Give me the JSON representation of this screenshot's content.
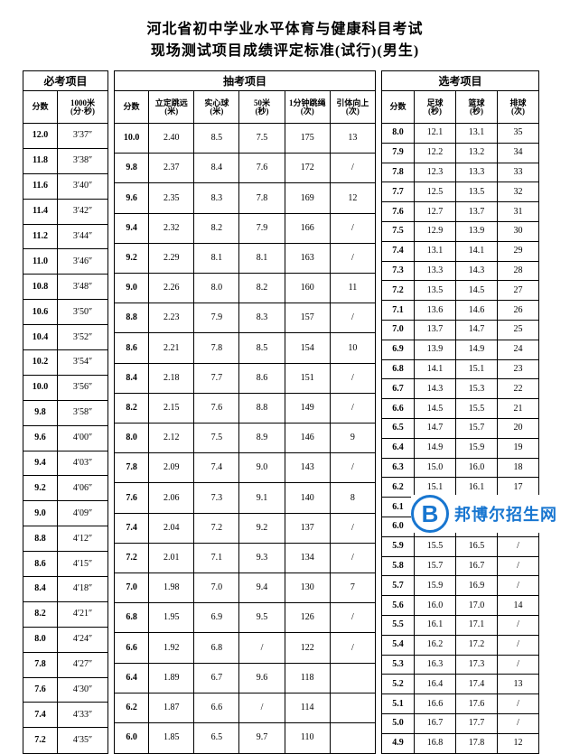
{
  "title1": "河北省初中学业水平体育与健康科目考试",
  "title2": "现场测试项目成绩评定标准(试行)(男生)",
  "watermark": {
    "letter": "B",
    "text": "邦博尔招生网"
  },
  "sections": [
    {
      "name": "必考项目",
      "cols": [
        "分数",
        "1000米\n(分·秒)"
      ],
      "rows": [
        [
          "12.0",
          "3′37″"
        ],
        [
          "11.8",
          "3′38″"
        ],
        [
          "11.6",
          "3′40″"
        ],
        [
          "11.4",
          "3′42″"
        ],
        [
          "11.2",
          "3′44″"
        ],
        [
          "11.0",
          "3′46″"
        ],
        [
          "10.8",
          "3′48″"
        ],
        [
          "10.6",
          "3′50″"
        ],
        [
          "10.4",
          "3′52″"
        ],
        [
          "10.2",
          "3′54″"
        ],
        [
          "10.0",
          "3′56″"
        ],
        [
          "9.8",
          "3′58″"
        ],
        [
          "9.6",
          "4′00″"
        ],
        [
          "9.4",
          "4′03″"
        ],
        [
          "9.2",
          "4′06″"
        ],
        [
          "9.0",
          "4′09″"
        ],
        [
          "8.8",
          "4′12″"
        ],
        [
          "8.6",
          "4′15″"
        ],
        [
          "8.4",
          "4′18″"
        ],
        [
          "8.2",
          "4′21″"
        ],
        [
          "8.0",
          "4′24″"
        ],
        [
          "7.8",
          "4′27″"
        ],
        [
          "7.6",
          "4′30″"
        ],
        [
          "7.4",
          "4′33″"
        ],
        [
          "7.2",
          "4′35″"
        ]
      ]
    },
    {
      "name": "抽考项目",
      "cols": [
        "分数",
        "立定跳远\n(米)",
        "实心球\n(米)",
        "50米\n(秒)",
        "1分钟跳绳\n(次)",
        "引体向上\n(次)"
      ],
      "rows": [
        [
          "10.0",
          "2.40",
          "8.5",
          "7.5",
          "175",
          "13"
        ],
        [
          "9.8",
          "2.37",
          "8.4",
          "7.6",
          "172",
          "/"
        ],
        [
          "9.6",
          "2.35",
          "8.3",
          "7.8",
          "169",
          "12"
        ],
        [
          "9.4",
          "2.32",
          "8.2",
          "7.9",
          "166",
          "/"
        ],
        [
          "9.2",
          "2.29",
          "8.1",
          "8.1",
          "163",
          "/"
        ],
        [
          "9.0",
          "2.26",
          "8.0",
          "8.2",
          "160",
          "11"
        ],
        [
          "8.8",
          "2.23",
          "7.9",
          "8.3",
          "157",
          "/"
        ],
        [
          "8.6",
          "2.21",
          "7.8",
          "8.5",
          "154",
          "10"
        ],
        [
          "8.4",
          "2.18",
          "7.7",
          "8.6",
          "151",
          "/"
        ],
        [
          "8.2",
          "2.15",
          "7.6",
          "8.8",
          "149",
          "/"
        ],
        [
          "8.0",
          "2.12",
          "7.5",
          "8.9",
          "146",
          "9"
        ],
        [
          "7.8",
          "2.09",
          "7.4",
          "9.0",
          "143",
          "/"
        ],
        [
          "7.6",
          "2.06",
          "7.3",
          "9.1",
          "140",
          "8"
        ],
        [
          "7.4",
          "2.04",
          "7.2",
          "9.2",
          "137",
          "/"
        ],
        [
          "7.2",
          "2.01",
          "7.1",
          "9.3",
          "134",
          "/"
        ],
        [
          "7.0",
          "1.98",
          "7.0",
          "9.4",
          "130",
          "7"
        ],
        [
          "6.8",
          "1.95",
          "6.9",
          "9.5",
          "126",
          "/"
        ],
        [
          "6.6",
          "1.92",
          "6.8",
          "/",
          "122",
          "/"
        ],
        [
          "6.4",
          "1.89",
          "6.7",
          "9.6",
          "118",
          ""
        ],
        [
          "6.2",
          "1.87",
          "6.6",
          "/",
          "114",
          ""
        ],
        [
          "6.0",
          "1.85",
          "6.5",
          "9.7",
          "110",
          ""
        ]
      ]
    },
    {
      "name": "选考项目",
      "cols": [
        "分数",
        "足球\n(秒)",
        "篮球\n(秒)",
        "排球\n(次)"
      ],
      "rows": [
        [
          "8.0",
          "12.1",
          "13.1",
          "35"
        ],
        [
          "7.9",
          "12.2",
          "13.2",
          "34"
        ],
        [
          "7.8",
          "12.3",
          "13.3",
          "33"
        ],
        [
          "7.7",
          "12.5",
          "13.5",
          "32"
        ],
        [
          "7.6",
          "12.7",
          "13.7",
          "31"
        ],
        [
          "7.5",
          "12.9",
          "13.9",
          "30"
        ],
        [
          "7.4",
          "13.1",
          "14.1",
          "29"
        ],
        [
          "7.3",
          "13.3",
          "14.3",
          "28"
        ],
        [
          "7.2",
          "13.5",
          "14.5",
          "27"
        ],
        [
          "7.1",
          "13.6",
          "14.6",
          "26"
        ],
        [
          "7.0",
          "13.7",
          "14.7",
          "25"
        ],
        [
          "6.9",
          "13.9",
          "14.9",
          "24"
        ],
        [
          "6.8",
          "14.1",
          "15.1",
          "23"
        ],
        [
          "6.7",
          "14.3",
          "15.3",
          "22"
        ],
        [
          "6.6",
          "14.5",
          "15.5",
          "21"
        ],
        [
          "6.5",
          "14.7",
          "15.7",
          "20"
        ],
        [
          "6.4",
          "14.9",
          "15.9",
          "19"
        ],
        [
          "6.3",
          "15.0",
          "16.0",
          "18"
        ],
        [
          "6.2",
          "15.1",
          "16.1",
          "17"
        ],
        [
          "6.1",
          "15.2",
          "16.2",
          "16"
        ],
        [
          "6.0",
          "15.3",
          "16.3",
          "15"
        ],
        [
          "5.9",
          "15.5",
          "16.5",
          "/"
        ],
        [
          "5.8",
          "15.7",
          "16.7",
          "/"
        ],
        [
          "5.7",
          "15.9",
          "16.9",
          "/"
        ],
        [
          "5.6",
          "16.0",
          "17.0",
          "14"
        ],
        [
          "5.5",
          "16.1",
          "17.1",
          "/"
        ],
        [
          "5.4",
          "16.2",
          "17.2",
          "/"
        ],
        [
          "5.3",
          "16.3",
          "17.3",
          "/"
        ],
        [
          "5.2",
          "16.4",
          "17.4",
          "13"
        ],
        [
          "5.1",
          "16.6",
          "17.6",
          "/"
        ],
        [
          "5.0",
          "16.7",
          "17.7",
          "/"
        ],
        [
          "4.9",
          "16.8",
          "17.8",
          "12"
        ]
      ]
    }
  ]
}
